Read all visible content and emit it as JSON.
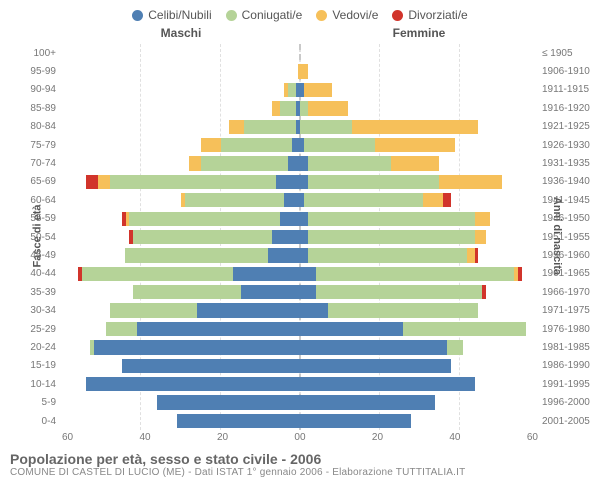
{
  "legend": [
    {
      "label": "Celibi/Nubili",
      "color": "#4f7fb3"
    },
    {
      "label": "Coniugati/e",
      "color": "#b5d398"
    },
    {
      "label": "Vedovi/e",
      "color": "#f6c05a"
    },
    {
      "label": "Divorziati/e",
      "color": "#d1342b"
    }
  ],
  "headers": {
    "left": "Maschi",
    "right": "Femmine"
  },
  "yaxis_left_title": "Fasce di età",
  "yaxis_right_title": "Anni di nascita",
  "xaxis": {
    "max": 60,
    "ticks": [
      60,
      40,
      20,
      0,
      20,
      40,
      60
    ]
  },
  "colors": {
    "celibi": "#4f7fb3",
    "coniugati": "#b5d398",
    "vedovi": "#f6c05a",
    "divorziati": "#d1342b",
    "grid": "#e0e0e0",
    "center": "#c9c9c9",
    "text": "#666"
  },
  "rows": [
    {
      "age": "100+",
      "birth": "≤ 1905",
      "m": {
        "c": 0,
        "m": 0,
        "w": 0,
        "d": 0
      },
      "f": {
        "c": 0,
        "m": 0,
        "w": 0,
        "d": 0
      }
    },
    {
      "age": "95-99",
      "birth": "1906-1910",
      "m": {
        "c": 0,
        "m": 0,
        "w": 0.5,
        "d": 0
      },
      "f": {
        "c": 0,
        "m": 0,
        "w": 2,
        "d": 0
      }
    },
    {
      "age": "90-94",
      "birth": "1911-1915",
      "m": {
        "c": 1,
        "m": 2,
        "w": 1,
        "d": 0
      },
      "f": {
        "c": 1,
        "m": 0,
        "w": 7,
        "d": 0
      }
    },
    {
      "age": "85-89",
      "birth": "1916-1920",
      "m": {
        "c": 1,
        "m": 4,
        "w": 2,
        "d": 0
      },
      "f": {
        "c": 0,
        "m": 2,
        "w": 10,
        "d": 0
      }
    },
    {
      "age": "80-84",
      "birth": "1921-1925",
      "m": {
        "c": 1,
        "m": 13,
        "w": 4,
        "d": 0
      },
      "f": {
        "c": 0,
        "m": 13,
        "w": 32,
        "d": 0
      }
    },
    {
      "age": "75-79",
      "birth": "1926-1930",
      "m": {
        "c": 2,
        "m": 18,
        "w": 5,
        "d": 0
      },
      "f": {
        "c": 1,
        "m": 18,
        "w": 20,
        "d": 0
      }
    },
    {
      "age": "70-74",
      "birth": "1931-1935",
      "m": {
        "c": 3,
        "m": 22,
        "w": 3,
        "d": 0
      },
      "f": {
        "c": 2,
        "m": 21,
        "w": 12,
        "d": 0
      }
    },
    {
      "age": "65-69",
      "birth": "1936-1940",
      "m": {
        "c": 6,
        "m": 42,
        "w": 3,
        "d": 3
      },
      "f": {
        "c": 2,
        "m": 33,
        "w": 16,
        "d": 0
      }
    },
    {
      "age": "60-64",
      "birth": "1941-1945",
      "m": {
        "c": 4,
        "m": 25,
        "w": 1,
        "d": 0
      },
      "f": {
        "c": 1,
        "m": 30,
        "w": 5,
        "d": 2
      }
    },
    {
      "age": "55-59",
      "birth": "1946-1950",
      "m": {
        "c": 5,
        "m": 38,
        "w": 1,
        "d": 1
      },
      "f": {
        "c": 2,
        "m": 42,
        "w": 4,
        "d": 0
      }
    },
    {
      "age": "50-54",
      "birth": "1951-1955",
      "m": {
        "c": 7,
        "m": 35,
        "w": 0,
        "d": 1
      },
      "f": {
        "c": 2,
        "m": 42,
        "w": 3,
        "d": 0
      }
    },
    {
      "age": "45-49",
      "birth": "1956-1960",
      "m": {
        "c": 8,
        "m": 36,
        "w": 0,
        "d": 0
      },
      "f": {
        "c": 2,
        "m": 40,
        "w": 2,
        "d": 1
      }
    },
    {
      "age": "40-44",
      "birth": "1961-1965",
      "m": {
        "c": 17,
        "m": 38,
        "w": 0,
        "d": 1
      },
      "f": {
        "c": 4,
        "m": 50,
        "w": 1,
        "d": 1
      }
    },
    {
      "age": "35-39",
      "birth": "1966-1970",
      "m": {
        "c": 15,
        "m": 27,
        "w": 0,
        "d": 0
      },
      "f": {
        "c": 4,
        "m": 42,
        "w": 0,
        "d": 1
      }
    },
    {
      "age": "30-34",
      "birth": "1971-1975",
      "m": {
        "c": 26,
        "m": 22,
        "w": 0,
        "d": 0
      },
      "f": {
        "c": 7,
        "m": 38,
        "w": 0,
        "d": 0
      }
    },
    {
      "age": "25-29",
      "birth": "1976-1980",
      "m": {
        "c": 41,
        "m": 8,
        "w": 0,
        "d": 0
      },
      "f": {
        "c": 26,
        "m": 31,
        "w": 0,
        "d": 0
      }
    },
    {
      "age": "20-24",
      "birth": "1981-1985",
      "m": {
        "c": 52,
        "m": 1,
        "w": 0,
        "d": 0
      },
      "f": {
        "c": 37,
        "m": 4,
        "w": 0,
        "d": 0
      }
    },
    {
      "age": "15-19",
      "birth": "1986-1990",
      "m": {
        "c": 45,
        "m": 0,
        "w": 0,
        "d": 0
      },
      "f": {
        "c": 38,
        "m": 0,
        "w": 0,
        "d": 0
      }
    },
    {
      "age": "10-14",
      "birth": "1991-1995",
      "m": {
        "c": 54,
        "m": 0,
        "w": 0,
        "d": 0
      },
      "f": {
        "c": 44,
        "m": 0,
        "w": 0,
        "d": 0
      }
    },
    {
      "age": "5-9",
      "birth": "1996-2000",
      "m": {
        "c": 36,
        "m": 0,
        "w": 0,
        "d": 0
      },
      "f": {
        "c": 34,
        "m": 0,
        "w": 0,
        "d": 0
      }
    },
    {
      "age": "0-4",
      "birth": "2001-2005",
      "m": {
        "c": 31,
        "m": 0,
        "w": 0,
        "d": 0
      },
      "f": {
        "c": 28,
        "m": 0,
        "w": 0,
        "d": 0
      }
    }
  ],
  "footer": {
    "title": "Popolazione per età, sesso e stato civile - 2006",
    "subtitle": "COMUNE DI CASTEL DI LUCIO (ME) - Dati ISTAT 1° gennaio 2006 - Elaborazione TUTTITALIA.IT"
  }
}
